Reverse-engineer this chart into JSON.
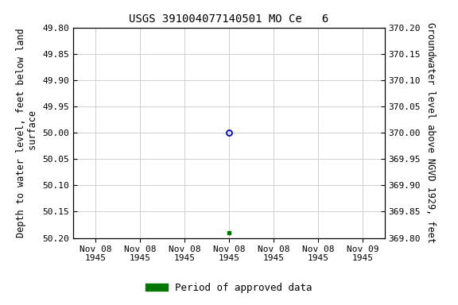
{
  "title": "USGS 391004077140501 MO Ce   6",
  "left_ylabel_lines": [
    "Depth to water level, feet below land",
    "surface"
  ],
  "right_ylabel": "Groundwater level above NGVD 1929, feet",
  "ylim_left": [
    49.8,
    50.2
  ],
  "ylim_right": [
    370.2,
    369.8
  ],
  "yticks_left": [
    49.8,
    49.85,
    49.9,
    49.95,
    50.0,
    50.05,
    50.1,
    50.15,
    50.2
  ],
  "yticks_right": [
    370.2,
    370.15,
    370.1,
    370.05,
    370.0,
    369.95,
    369.9,
    369.85,
    369.8
  ],
  "data_circle": {
    "date_str": "1945-11-08",
    "value": 50.0
  },
  "data_square": {
    "date_str": "1945-11-08",
    "value": 50.19
  },
  "circle_color": "#0000bb",
  "square_color": "#007700",
  "legend_label": "Period of approved data",
  "legend_color": "#007700",
  "bg_color": "#ffffff",
  "grid_color": "#c8c8c8",
  "title_fontsize": 10,
  "axis_label_fontsize": 8.5,
  "tick_fontsize": 8,
  "xtick_labels": [
    "Nov 08\n1945",
    "Nov 08\n1945",
    "Nov 08\n1945",
    "Nov 08\n1945",
    "Nov 08\n1945",
    "Nov 08\n1945",
    "Nov 09\n1945"
  ],
  "xdata_index_circle": 3,
  "xdata_index_square": 3,
  "n_xticks": 7,
  "xlim": [
    0,
    6
  ]
}
